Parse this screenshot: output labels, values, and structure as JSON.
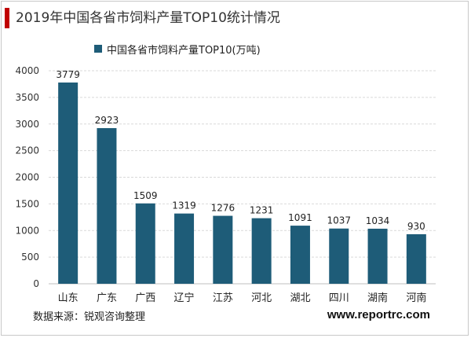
{
  "title": "2019年中国各省市饲料产量TOP10统计情况",
  "source": "数据来源：锐观咨询整理",
  "website": "www.reportrc.com",
  "colors": {
    "bar": "#1e5c78",
    "title_accent": "#c00000",
    "grid": "#d9d9d9",
    "axis": "#bfbfbf"
  },
  "chart_data": {
    "type": "bar",
    "categories": [
      "山东",
      "广东",
      "广西",
      "辽宁",
      "江苏",
      "河北",
      "湖北",
      "四川",
      "湖南",
      "河南"
    ],
    "series": [
      {
        "name": "中国各省市饲料产量TOP10(万吨)",
        "values": [
          3779,
          2923,
          1509,
          1319,
          1276,
          1231,
          1091,
          1037,
          1034,
          930
        ]
      }
    ],
    "ylim": [
      0,
      4000
    ],
    "yticks": [
      0,
      500,
      1000,
      1500,
      2000,
      2500,
      3000,
      3500,
      4000
    ],
    "grid": true,
    "legend": "top-left",
    "data_labels": true
  }
}
